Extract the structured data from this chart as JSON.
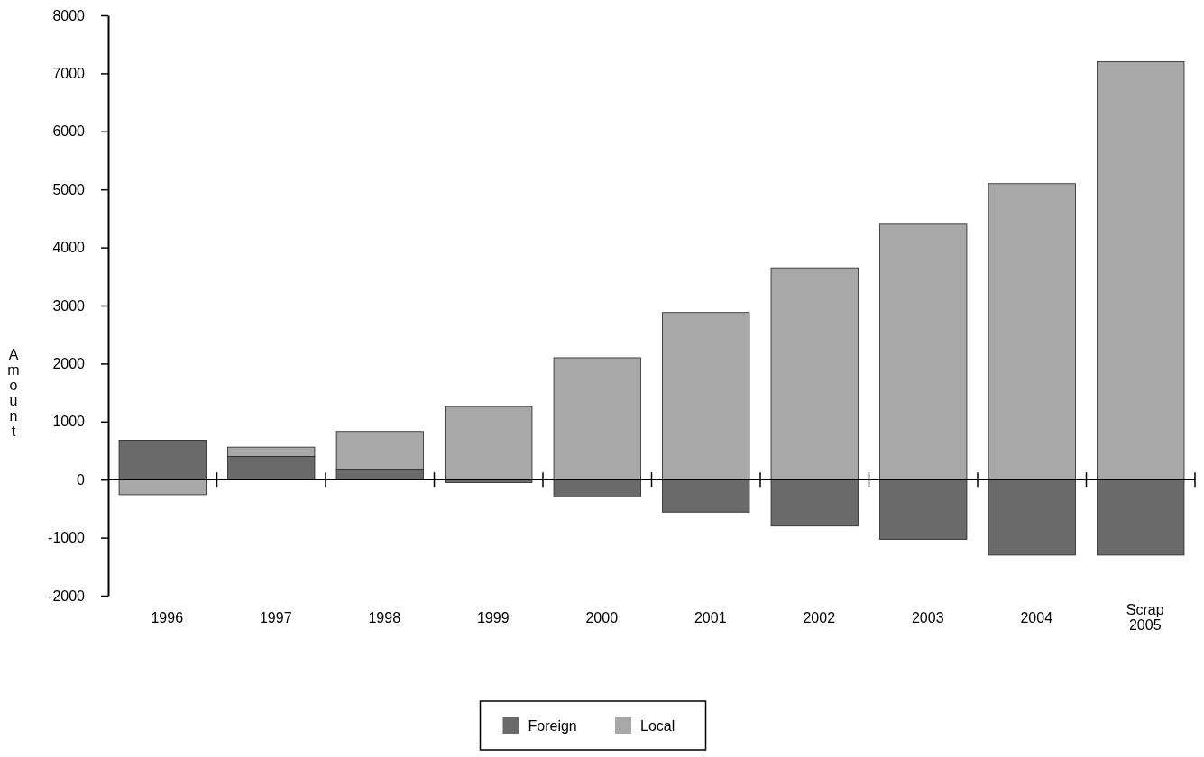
{
  "chart_data": {
    "type": "bar",
    "stacked": true,
    "categories": [
      "1996",
      "1997",
      "1998",
      "1999",
      "2000",
      "2001",
      "2002",
      "2003",
      "2004",
      "Scrap 2005"
    ],
    "series": [
      {
        "name": "Foreign",
        "color": "#6a6a6a",
        "values": [
          680,
          400,
          180,
          -50,
          -300,
          -560,
          -800,
          -1030,
          -1300,
          -1300
        ]
      },
      {
        "name": "Local",
        "color": "#a8a8a8",
        "values": [
          -260,
          160,
          650,
          1260,
          2100,
          2880,
          3650,
          4400,
          5100,
          7200
        ]
      }
    ],
    "ylabel": "Amount",
    "ylim": [
      -2000,
      8000
    ],
    "yticks": [
      -2000,
      -1000,
      0,
      1000,
      2000,
      3000,
      4000,
      5000,
      6000,
      7000,
      8000
    ],
    "legend": "bottom"
  }
}
